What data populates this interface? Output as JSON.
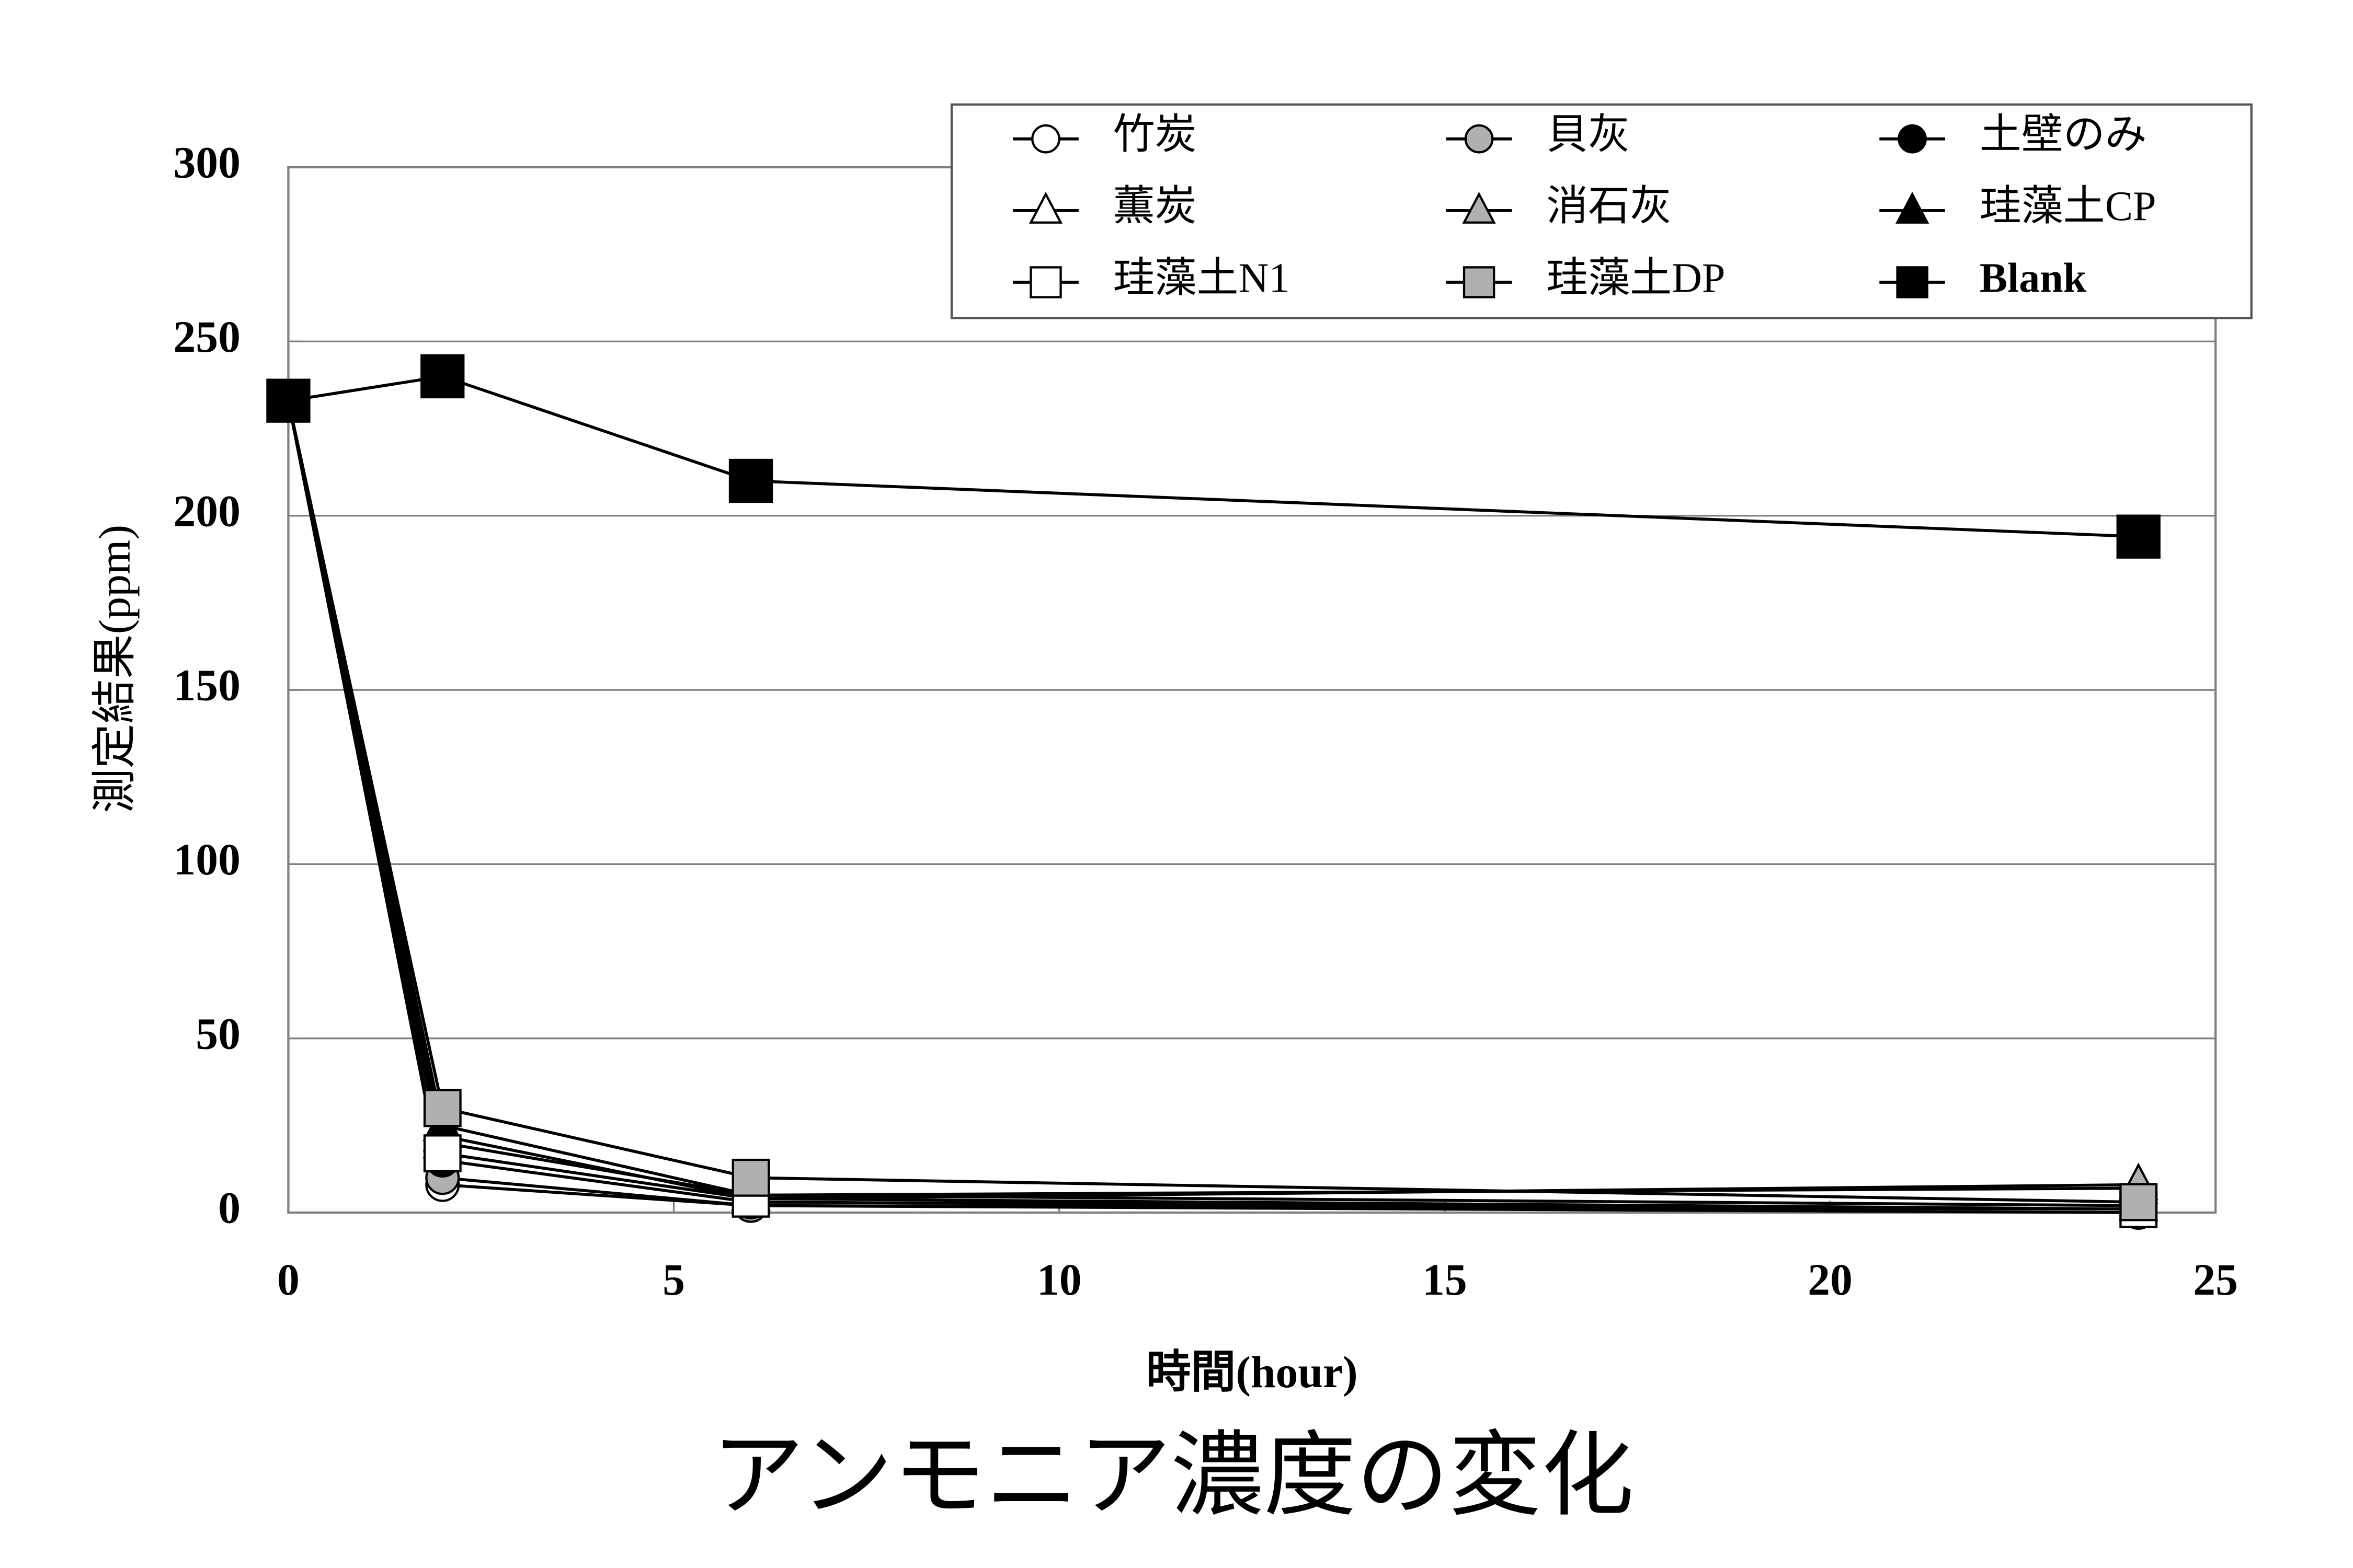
{
  "chart_data": {
    "type": "line",
    "caption": "アンモニア濃度の変化",
    "x_label": "時間(hour)",
    "y_label": "測定結果(ppm)",
    "x": [
      0,
      2,
      6,
      24
    ],
    "xlim": [
      0,
      25
    ],
    "xticks": [
      0,
      5,
      10,
      15,
      20,
      25
    ],
    "ylim": [
      0,
      300
    ],
    "yticks": [
      0,
      50,
      100,
      150,
      200,
      250,
      300
    ],
    "grid": true,
    "legend": "top-right",
    "series": [
      {
        "name": "竹炭",
        "marker": "circle",
        "color": "#ffffff",
        "values": [
          233,
          8,
          2,
          0
        ]
      },
      {
        "name": "貝灰",
        "marker": "circle",
        "color": "#b0b0b0",
        "values": [
          233,
          10,
          2,
          1
        ]
      },
      {
        "name": "土壁のみ",
        "marker": "circle",
        "color": "#000000",
        "values": [
          233,
          15,
          3,
          1
        ]
      },
      {
        "name": "薫炭",
        "marker": "triangle",
        "color": "#ffffff",
        "values": [
          233,
          20,
          5,
          7
        ]
      },
      {
        "name": "消石灰",
        "marker": "triangle",
        "color": "#b0b0b0",
        "values": [
          233,
          22,
          4,
          8
        ]
      },
      {
        "name": "珪藻土CP",
        "marker": "triangle",
        "color": "#000000",
        "values": [
          233,
          25,
          5,
          2
        ]
      },
      {
        "name": "珪藻土N1",
        "marker": "square",
        "color": "#ffffff",
        "values": [
          233,
          17,
          4,
          1
        ]
      },
      {
        "name": "珪藻土DP",
        "marker": "square",
        "color": "#b0b0b0",
        "values": [
          233,
          30,
          10,
          3
        ]
      },
      {
        "name": "Blank",
        "marker": "square",
        "color": "#000000",
        "values": [
          233,
          240,
          210,
          194
        ]
      }
    ]
  }
}
